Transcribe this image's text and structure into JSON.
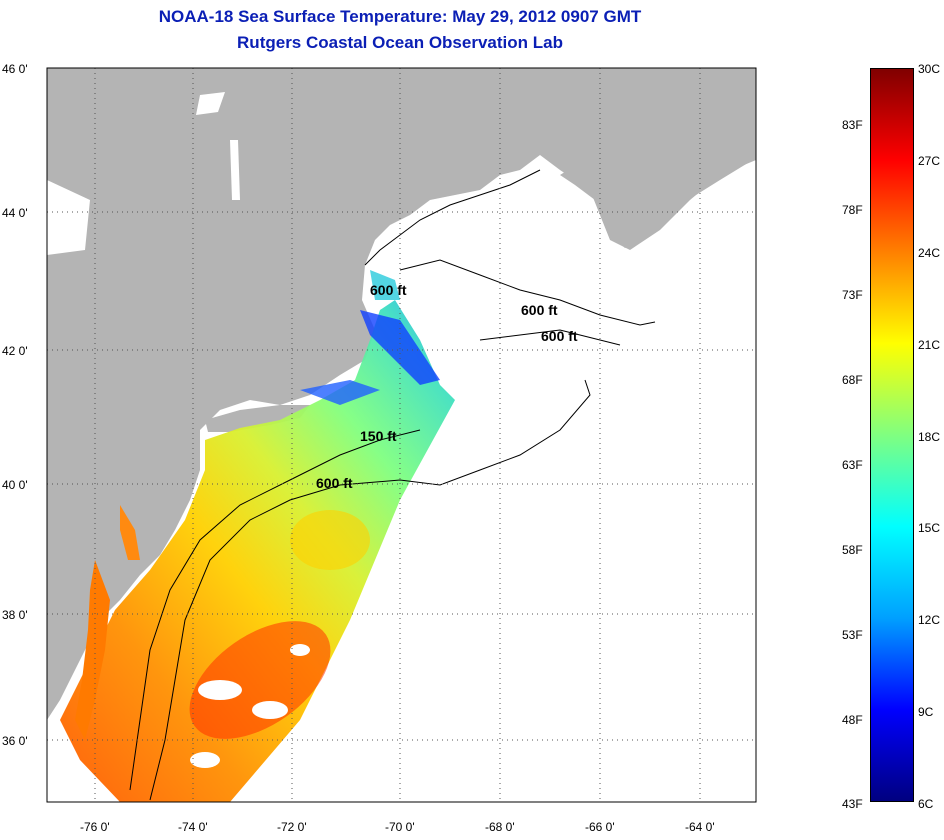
{
  "title": {
    "line1": "NOAA-18 Sea Surface Temperature:  May 29, 2012 0907 GMT",
    "line2": "Rutgers Coastal Ocean Observation Lab"
  },
  "axes": {
    "lat_labels": [
      "46 0'",
      "44 0'",
      "42 0'",
      "40 0'",
      "38 0'",
      "36 0'"
    ],
    "lon_labels": [
      "-76 0'",
      "-74 0'",
      "-72 0'",
      "-70 0'",
      "-68 0'",
      "-66 0'",
      "-64 0'"
    ],
    "lat_range": [
      35,
      46
    ],
    "lon_range": [
      -77,
      -62.5
    ]
  },
  "contour_labels": [
    {
      "text": "600 ft",
      "lon": -70.4,
      "lat": 42.8
    },
    {
      "text": "600 ft",
      "lon": -67.3,
      "lat": 42.5
    },
    {
      "text": "600 ft",
      "lon": -66.9,
      "lat": 42.1
    },
    {
      "text": "150 ft",
      "lon": -70.6,
      "lat": 40.6
    },
    {
      "text": "600 ft",
      "lon": -71.5,
      "lat": 39.9
    }
  ],
  "colorbar": {
    "celsius_labels": [
      "30C",
      "27C",
      "24C",
      "21C",
      "18C",
      "15C",
      "12C",
      "9C",
      "6C"
    ],
    "fahrenheit_labels": [
      "83F",
      "78F",
      "73F",
      "68F",
      "63F",
      "58F",
      "53F",
      "48F",
      "43F"
    ],
    "range_c": [
      6,
      30
    ],
    "colors": [
      "#000080",
      "#0000ff",
      "#00a0ff",
      "#00ffff",
      "#80ff80",
      "#ffff00",
      "#ff8000",
      "#ff0000",
      "#800000"
    ]
  },
  "colors": {
    "land": "#b4b4b4",
    "no_data": "#ffffff",
    "title": "#0b1fb5"
  }
}
